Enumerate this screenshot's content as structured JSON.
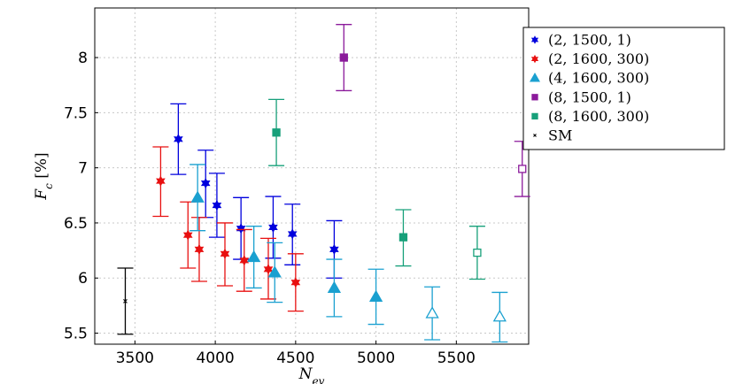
{
  "chart_data": {
    "type": "scatter",
    "xlabel": "N_ev",
    "ylabel": "F_c [%]",
    "xlim": [
      3250,
      5950
    ],
    "ylim": [
      5.4,
      8.45
    ],
    "xticks": [
      "3500",
      "4000",
      "4500",
      "5000",
      "5500"
    ],
    "xtick_values": [
      3500,
      4000,
      4500,
      5000,
      5500
    ],
    "yticks": [
      "5.5",
      "6",
      "6.5",
      "7",
      "7.5",
      "8"
    ],
    "ytick_values": [
      5.5,
      6,
      6.5,
      7,
      7.5,
      8
    ],
    "grid": true,
    "legend_position": "top-right outside",
    "series": [
      {
        "name": "(2, 1500, 1)",
        "marker": "star",
        "color": "#0000dd",
        "points": [
          {
            "x": 3770,
            "y": 7.26,
            "lo": 6.94,
            "hi": 7.58,
            "filled": true
          },
          {
            "x": 3940,
            "y": 6.86,
            "lo": 6.55,
            "hi": 7.16,
            "filled": true
          },
          {
            "x": 4010,
            "y": 6.66,
            "lo": 6.37,
            "hi": 6.95,
            "filled": true
          },
          {
            "x": 4160,
            "y": 6.45,
            "lo": 6.17,
            "hi": 6.73,
            "filled": true
          },
          {
            "x": 4360,
            "y": 6.46,
            "lo": 6.18,
            "hi": 6.74,
            "filled": true
          },
          {
            "x": 4480,
            "y": 6.4,
            "lo": 6.12,
            "hi": 6.67,
            "filled": true
          },
          {
            "x": 4740,
            "y": 6.26,
            "lo": 6.0,
            "hi": 6.52,
            "filled": true
          }
        ]
      },
      {
        "name": "(2, 1600, 300)",
        "marker": "star",
        "color": "#e81010",
        "points": [
          {
            "x": 3660,
            "y": 6.88,
            "lo": 6.56,
            "hi": 7.19,
            "filled": true
          },
          {
            "x": 3830,
            "y": 6.39,
            "lo": 6.09,
            "hi": 6.69,
            "filled": true
          },
          {
            "x": 3900,
            "y": 6.26,
            "lo": 5.97,
            "hi": 6.55,
            "filled": true
          },
          {
            "x": 4060,
            "y": 6.22,
            "lo": 5.93,
            "hi": 6.5,
            "filled": true
          },
          {
            "x": 4180,
            "y": 6.16,
            "lo": 5.88,
            "hi": 6.44,
            "filled": true
          },
          {
            "x": 4330,
            "y": 6.08,
            "lo": 5.81,
            "hi": 6.36,
            "filled": true
          },
          {
            "x": 4500,
            "y": 5.96,
            "lo": 5.7,
            "hi": 6.22,
            "filled": true
          }
        ]
      },
      {
        "name": "(4, 1600, 300)",
        "marker": "triangle",
        "color": "#1aa0d0",
        "points": [
          {
            "x": 3890,
            "y": 6.73,
            "lo": 6.43,
            "hi": 7.03,
            "filled": true
          },
          {
            "x": 4240,
            "y": 6.19,
            "lo": 5.91,
            "hi": 6.47,
            "filled": true
          },
          {
            "x": 4370,
            "y": 6.05,
            "lo": 5.78,
            "hi": 6.32,
            "filled": true
          },
          {
            "x": 4740,
            "y": 5.91,
            "lo": 5.65,
            "hi": 6.17,
            "filled": true
          },
          {
            "x": 5000,
            "y": 5.83,
            "lo": 5.58,
            "hi": 6.08,
            "filled": true
          },
          {
            "x": 5350,
            "y": 5.68,
            "lo": 5.44,
            "hi": 5.92,
            "filled": false
          },
          {
            "x": 5770,
            "y": 5.65,
            "lo": 5.42,
            "hi": 5.87,
            "filled": false
          }
        ]
      },
      {
        "name": "(8, 1500, 1)",
        "marker": "square",
        "color": "#8b1a9b",
        "points": [
          {
            "x": 4800,
            "y": 8.0,
            "lo": 7.7,
            "hi": 8.3,
            "filled": true
          },
          {
            "x": 5910,
            "y": 6.99,
            "lo": 6.74,
            "hi": 7.24,
            "filled": false
          }
        ]
      },
      {
        "name": "(8, 1600, 300)",
        "marker": "square",
        "color": "#17a07a",
        "points": [
          {
            "x": 4380,
            "y": 7.32,
            "lo": 7.02,
            "hi": 7.62,
            "filled": true
          },
          {
            "x": 5170,
            "y": 6.37,
            "lo": 6.11,
            "hi": 6.62,
            "filled": true
          },
          {
            "x": 5630,
            "y": 6.23,
            "lo": 5.99,
            "hi": 6.47,
            "filled": false
          }
        ]
      },
      {
        "name": "SM",
        "marker": "x",
        "color": "#000000",
        "points": [
          {
            "x": 3440,
            "y": 5.79,
            "lo": 5.49,
            "hi": 6.09,
            "filled": true
          }
        ]
      }
    ]
  }
}
